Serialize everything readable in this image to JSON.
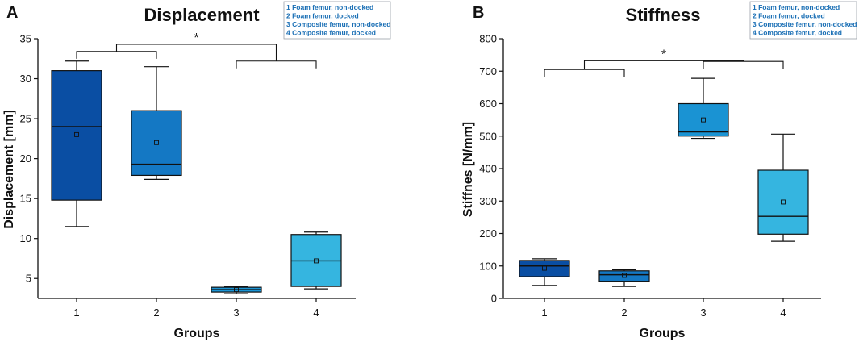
{
  "chart_data": [
    {
      "type": "box",
      "panel_label": "A",
      "title": "Displacement",
      "xlabel": "Groups",
      "ylabel": "Displacement [mm]",
      "ylim": [
        2.5,
        35
      ],
      "yticks": [
        5,
        10,
        15,
        20,
        25,
        30,
        35
      ],
      "categories": [
        "1",
        "2",
        "3",
        "4"
      ],
      "boxes": [
        {
          "group": "1",
          "whisker_low": 11.5,
          "q1": 14.8,
          "median": 24.0,
          "q3": 31.0,
          "whisker_high": 32.2,
          "mean": 23.0,
          "color": "#0a4ea3"
        },
        {
          "group": "2",
          "whisker_low": 17.4,
          "q1": 17.9,
          "median": 19.3,
          "q3": 26.0,
          "whisker_high": 31.5,
          "mean": 22.0,
          "color": "#1478c4"
        },
        {
          "group": "3",
          "whisker_low": 3.1,
          "q1": 3.3,
          "median": 3.6,
          "q3": 3.9,
          "whisker_high": 4.0,
          "mean": 3.6,
          "color": "#1a93d3"
        },
        {
          "group": "4",
          "whisker_low": 3.7,
          "q1": 4.0,
          "median": 7.2,
          "q3": 10.5,
          "whisker_high": 10.8,
          "mean": 7.2,
          "color": "#35b5e0"
        }
      ],
      "significance": {
        "label": "*",
        "left_groups": [
          "1",
          "2"
        ],
        "right_groups": [
          "3",
          "4"
        ],
        "level_left": 33.4,
        "level_right": 32.2,
        "level_top": 34.3
      },
      "legend": [
        "1   Foam femur, non-docked",
        "2   Foam femur, docked",
        "3   Composite femur, non-docked",
        "4   Composite femur, docked"
      ]
    },
    {
      "type": "box",
      "panel_label": "B",
      "title": "Stiffness",
      "xlabel": "Groups",
      "ylabel": "Stiffnes [N/mm]",
      "ylim": [
        0,
        800
      ],
      "yticks": [
        0,
        100,
        200,
        300,
        400,
        500,
        600,
        700,
        800
      ],
      "categories": [
        "1",
        "2",
        "3",
        "4"
      ],
      "boxes": [
        {
          "group": "1",
          "whisker_low": 40,
          "q1": 67,
          "median": 100,
          "q3": 117,
          "whisker_high": 122,
          "mean": 93,
          "color": "#0a4ea3"
        },
        {
          "group": "2",
          "whisker_low": 37,
          "q1": 53,
          "median": 73,
          "q3": 85,
          "whisker_high": 88,
          "mean": 71,
          "color": "#1478c4"
        },
        {
          "group": "3",
          "whisker_low": 493,
          "q1": 500,
          "median": 513,
          "q3": 600,
          "whisker_high": 678,
          "mean": 550,
          "color": "#1a93d3"
        },
        {
          "group": "4",
          "whisker_low": 176,
          "q1": 198,
          "median": 253,
          "q3": 395,
          "whisker_high": 506,
          "mean": 297,
          "color": "#35b5e0"
        }
      ],
      "significance": {
        "label": "*",
        "left_groups": [
          "1",
          "2"
        ],
        "right_groups": [
          "3",
          "4"
        ],
        "level_left": 705,
        "level_right": 730,
        "level_top": 732
      },
      "legend": [
        "1   Foam femur, non-docked",
        "2   Foam femur, docked",
        "3   Composite femur, non-docked",
        "4   Composite femur, docked"
      ]
    }
  ],
  "style": {
    "legend_text_color": "#1a6fb5",
    "legend_border_color": "#9aa0a8",
    "axis_color": "#111111"
  }
}
